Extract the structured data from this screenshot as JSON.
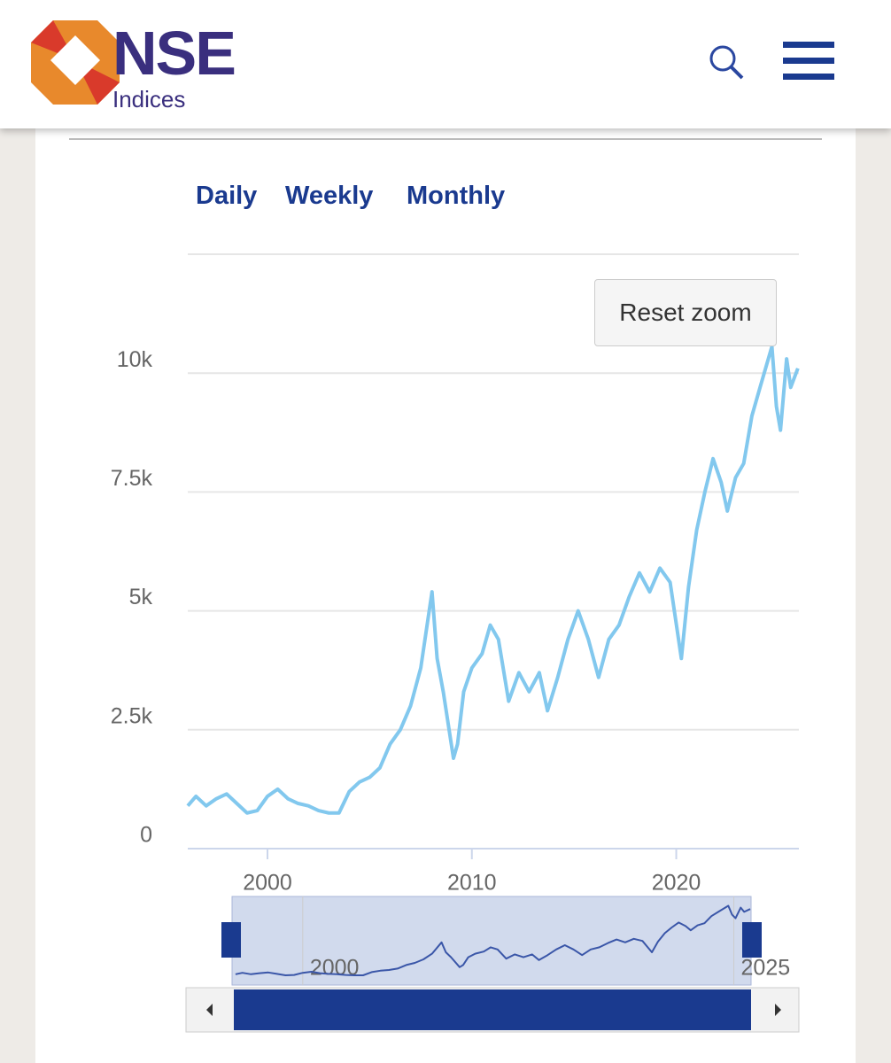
{
  "header": {
    "logo": "NSE",
    "sublogo": "Indices"
  },
  "tabs": [
    "Daily",
    "Weekly",
    "Monthly"
  ],
  "reset_button": "Reset zoom",
  "chart_data": {
    "type": "line",
    "x": [
      1996.1,
      1996.5,
      1997,
      1997.5,
      1998,
      1998.5,
      1999,
      1999.5,
      2000,
      2000.5,
      2001,
      2001.5,
      2002,
      2002.5,
      2003,
      2003.5,
      2004,
      2004.5,
      2005,
      2005.5,
      2006,
      2006.5,
      2007,
      2007.5,
      2008.05,
      2008.3,
      2008.6,
      2009.1,
      2009.3,
      2009.6,
      2010,
      2010.5,
      2010.9,
      2011.3,
      2011.8,
      2012.3,
      2012.8,
      2013.3,
      2013.7,
      2014.2,
      2014.7,
      2015.2,
      2015.7,
      2016.2,
      2016.7,
      2017.2,
      2017.7,
      2018.2,
      2018.7,
      2019.2,
      2019.7,
      2020.25,
      2020.6,
      2021,
      2021.4,
      2021.8,
      2022.2,
      2022.5,
      2022.9,
      2023.3,
      2023.7,
      2024.1,
      2024.68,
      2024.9,
      2025.1,
      2025.4,
      2025.6,
      2025.95
    ],
    "series": [
      {
        "color": "#82c8ee",
        "values": [
          900,
          1100,
          900,
          1050,
          1150,
          950,
          750,
          800,
          1100,
          1250,
          1050,
          950,
          900,
          800,
          750,
          750,
          1200,
          1400,
          1500,
          1700,
          2200,
          2500,
          3000,
          3800,
          5400,
          4000,
          3300,
          1900,
          2200,
          3300,
          3800,
          4100,
          4700,
          4400,
          3100,
          3700,
          3300,
          3700,
          2900,
          3600,
          4400,
          5000,
          4400,
          3600,
          4400,
          4700,
          5300,
          5800,
          5400,
          5900,
          5600,
          4000,
          5500,
          6700,
          7500,
          8200,
          7700,
          7100,
          7800,
          8100,
          9100,
          9700,
          10560,
          9300,
          8800,
          10300,
          9700,
          10100
        ]
      }
    ],
    "xlim": [
      1996.1,
      2026
    ],
    "xticks": [
      2000,
      2010,
      2020
    ],
    "ylim": [
      0,
      12500
    ],
    "yticks": [
      0,
      {
        "value": 2500,
        "label": "2.5k"
      },
      {
        "value": 5000,
        "label": "5k"
      },
      {
        "value": 7500,
        "label": "7.5k"
      },
      {
        "value": 10000,
        "label": "10k"
      }
    ],
    "grid": true,
    "navigator": {
      "xlim": [
        1995.9,
        2026
      ],
      "xticks": [
        2000,
        2025
      ],
      "color": "#3a56a8"
    }
  }
}
